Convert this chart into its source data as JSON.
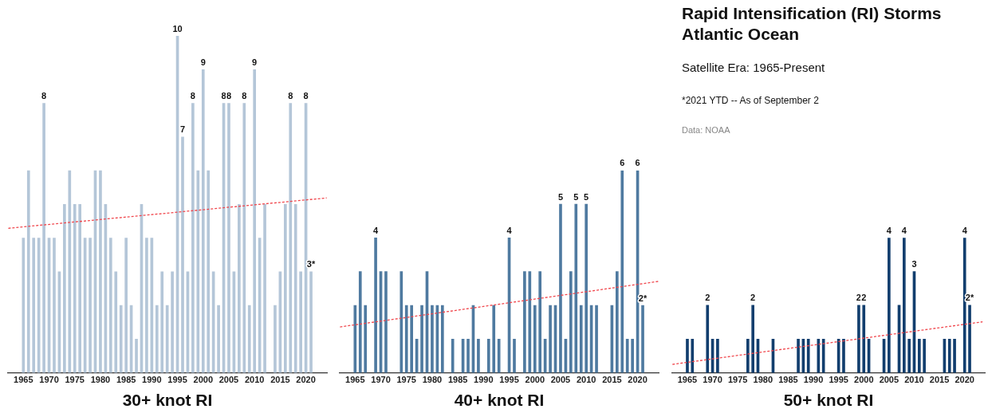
{
  "chart_data": [
    {
      "type": "bar",
      "xlabel": "30+ knot RI",
      "xlim": [
        1962,
        2024.1
      ],
      "xticks": [
        1965,
        1970,
        1975,
        1980,
        1985,
        1990,
        1995,
        2000,
        2005,
        2010,
        2015,
        2020
      ],
      "tick_labels": "x",
      "grid": false,
      "legend": false,
      "series": [
        {
          "type": "bar",
          "color": "#b4c6d8",
          "x": [
            1965,
            1966,
            1967,
            1968,
            1969,
            1970,
            1971,
            1972,
            1973,
            1974,
            1975,
            1976,
            1977,
            1978,
            1979,
            1980,
            1981,
            1982,
            1983,
            1984,
            1985,
            1986,
            1987,
            1988,
            1989,
            1990,
            1991,
            1992,
            1993,
            1994,
            1995,
            1996,
            1997,
            1998,
            1999,
            2000,
            2001,
            2002,
            2003,
            2004,
            2005,
            2006,
            2007,
            2008,
            2009,
            2010,
            2011,
            2012,
            2014,
            2015,
            2016,
            2017,
            2018,
            2019,
            2020,
            2021
          ],
          "values": [
            4,
            6,
            4,
            4,
            8,
            4,
            4,
            3,
            5,
            6,
            5,
            5,
            4,
            4,
            6,
            6,
            5,
            4,
            3,
            2,
            4,
            2,
            1,
            5,
            4,
            4,
            2,
            3,
            2,
            3,
            10,
            7,
            3,
            8,
            6,
            9,
            6,
            3,
            2,
            8,
            8,
            3,
            5,
            8,
            2,
            9,
            4,
            5,
            2,
            3,
            5,
            8,
            5,
            3,
            8,
            3
          ],
          "value_labels": [
            null,
            null,
            null,
            null,
            "8",
            null,
            null,
            null,
            null,
            null,
            null,
            null,
            null,
            null,
            null,
            null,
            null,
            null,
            null,
            null,
            null,
            null,
            null,
            null,
            null,
            null,
            null,
            null,
            null,
            null,
            "10",
            "7",
            null,
            "8",
            null,
            "9",
            null,
            null,
            null,
            "8",
            "8",
            null,
            null,
            "8",
            null,
            "9",
            null,
            null,
            null,
            null,
            null,
            "8",
            null,
            null,
            "8",
            "3*"
          ]
        },
        {
          "type": "line",
          "color": "#f0474d",
          "line_style": "dashed",
          "marker": "none",
          "x": [
            1962.06,
            2024.04
          ],
          "values": [
            4.29,
            5.19
          ]
        }
      ]
    },
    {
      "type": "bar",
      "xlabel": "40+ knot RI",
      "xlim": [
        1962,
        2024.1
      ],
      "xticks": [
        1965,
        1970,
        1975,
        1980,
        1985,
        1990,
        1995,
        2000,
        2005,
        2010,
        2015,
        2020
      ],
      "tick_labels": "x",
      "grid": false,
      "legend": false,
      "series": [
        {
          "type": "bar",
          "color": "#4f7aa0",
          "x": [
            1965,
            1966,
            1967,
            1969,
            1970,
            1971,
            1974,
            1975,
            1976,
            1977,
            1978,
            1979,
            1980,
            1981,
            1982,
            1984,
            1986,
            1987,
            1988,
            1989,
            1991,
            1992,
            1993,
            1995,
            1996,
            1998,
            1999,
            2000,
            2001,
            2002,
            2003,
            2004,
            2005,
            2006,
            2007,
            2008,
            2009,
            2010,
            2011,
            2012,
            2015,
            2016,
            2017,
            2018,
            2019,
            2020,
            2021
          ],
          "values": [
            2,
            3,
            2,
            4,
            3,
            3,
            3,
            2,
            2,
            1,
            2,
            3,
            2,
            2,
            2,
            1,
            1,
            1,
            2,
            1,
            1,
            2,
            1,
            4,
            1,
            3,
            3,
            2,
            3,
            1,
            2,
            2,
            5,
            1,
            3,
            5,
            2,
            5,
            2,
            2,
            2,
            3,
            6,
            1,
            1,
            6,
            2
          ],
          "value_labels": [
            null,
            null,
            null,
            "4",
            null,
            null,
            null,
            null,
            null,
            null,
            null,
            null,
            null,
            null,
            null,
            null,
            null,
            null,
            null,
            null,
            null,
            null,
            null,
            "4",
            null,
            null,
            null,
            null,
            null,
            null,
            null,
            null,
            "5",
            null,
            null,
            "5",
            null,
            "5",
            null,
            null,
            null,
            null,
            "6",
            null,
            null,
            "6",
            "2*"
          ]
        },
        {
          "type": "line",
          "color": "#f0474d",
          "line_style": "dashed",
          "marker": "none",
          "x": [
            1962.06,
            2024.04
          ],
          "values": [
            1.36,
            2.71
          ]
        }
      ]
    },
    {
      "type": "bar",
      "xlabel": "50+ knot RI",
      "xlim": [
        1962,
        2024
      ],
      "xticks": [
        1965,
        1970,
        1975,
        1980,
        1985,
        1990,
        1995,
        2000,
        2005,
        2010,
        2015,
        2020
      ],
      "tick_labels": "x",
      "grid": false,
      "legend": false,
      "series": [
        {
          "type": "bar",
          "color": "#123e6e",
          "x": [
            1965,
            1966,
            1969,
            1970,
            1971,
            1977,
            1978,
            1979,
            1982,
            1987,
            1988,
            1989,
            1991,
            1992,
            1995,
            1996,
            1999,
            2000,
            2001,
            2004,
            2005,
            2007,
            2008,
            2009,
            2010,
            2011,
            2012,
            2016,
            2017,
            2018,
            2020,
            2021
          ],
          "values": [
            1,
            1,
            2,
            1,
            1,
            1,
            2,
            1,
            1,
            1,
            1,
            1,
            1,
            1,
            1,
            1,
            2,
            2,
            1,
            1,
            4,
            2,
            4,
            1,
            3,
            1,
            1,
            1,
            1,
            1,
            4,
            2
          ],
          "value_labels": [
            null,
            null,
            "2",
            null,
            null,
            null,
            "2",
            null,
            null,
            null,
            null,
            null,
            null,
            null,
            null,
            null,
            "2",
            "2",
            null,
            null,
            "4",
            null,
            "4",
            null,
            "3",
            null,
            null,
            null,
            null,
            null,
            "4",
            "2*"
          ]
        },
        {
          "type": "line",
          "color": "#f0474d",
          "line_style": "dashed",
          "marker": "none",
          "x": [
            1962.05,
            2023.56
          ],
          "values": [
            0.25,
            1.51
          ]
        }
      ]
    },
    {
      "type": "other",
      "title": "Rapid Intensification (RI) Storms\nAtlantic Ocean",
      "subtitle": "Satellite Era: 1965-Present",
      "annotations": [
        "*2021 YTD -- As of September 2",
        "Data: NOAA"
      ]
    }
  ]
}
